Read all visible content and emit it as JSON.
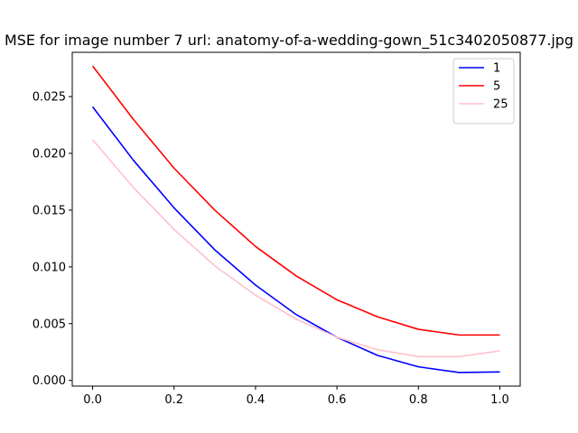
{
  "chart_data": {
    "type": "line",
    "title": "MSE for image number 7 url: anatomy-of-a-wedding-gown_51c3402050877.jpg",
    "xlabel": "",
    "ylabel": "",
    "xlim": [
      -0.05,
      1.05
    ],
    "ylim": [
      -0.0005,
      0.0289
    ],
    "x_ticks": [
      0.0,
      0.2,
      0.4,
      0.6,
      0.8,
      1.0
    ],
    "x_tick_labels": [
      "0.0",
      "0.2",
      "0.4",
      "0.6",
      "0.8",
      "1.0"
    ],
    "y_ticks": [
      0.0,
      0.005,
      0.01,
      0.015,
      0.02,
      0.025
    ],
    "y_tick_labels": [
      "0.000",
      "0.005",
      "0.010",
      "0.015",
      "0.020",
      "0.025"
    ],
    "grid": false,
    "legend_position": "top-right",
    "x": [
      0.0,
      0.1,
      0.2,
      0.3,
      0.4,
      0.5,
      0.6,
      0.7,
      0.8,
      0.9,
      1.0
    ],
    "series": [
      {
        "name": "1",
        "color": "#0000ff",
        "values": [
          0.0241,
          0.0194,
          0.0152,
          0.0115,
          0.0084,
          0.0058,
          0.0038,
          0.0022,
          0.0012,
          0.0007,
          0.00075
        ]
      },
      {
        "name": "5",
        "color": "#ff0000",
        "values": [
          0.0277,
          0.023,
          0.0187,
          0.015,
          0.0118,
          0.0092,
          0.0071,
          0.0056,
          0.0045,
          0.004,
          0.004
        ]
      },
      {
        "name": "25",
        "color": "#ffc0cb",
        "values": [
          0.0212,
          0.017,
          0.0133,
          0.0101,
          0.0075,
          0.0054,
          0.0038,
          0.0027,
          0.0021,
          0.0021,
          0.0026
        ]
      }
    ]
  }
}
